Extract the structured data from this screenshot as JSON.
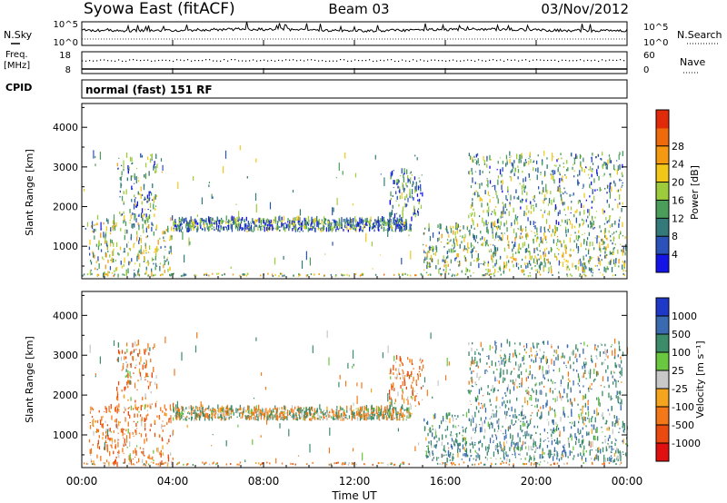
{
  "header": {
    "station": "Syowa East (fitACF)",
    "beam": "Beam 03",
    "date": "03/Nov/2012"
  },
  "noise_panel": {
    "left_label": "N.Sky",
    "right_label": "N.Search",
    "left_ticks": [
      "10^5",
      "10^0"
    ],
    "right_ticks": [
      "10^5",
      "10^0"
    ]
  },
  "freq_panel": {
    "left_label_1": "Freq.",
    "left_label_2": "[MHz]",
    "right_label": "Nave",
    "left_ticks": [
      "18",
      "8"
    ],
    "right_ticks": [
      "60",
      "0"
    ]
  },
  "cpid": {
    "label": "CPID",
    "value": "normal (fast) 151 RF"
  },
  "chart_data": [
    {
      "type": "heatmap",
      "parameter": "Power",
      "ylabel": "Slant Range [km]",
      "xlabel": "",
      "ylim": [
        180,
        4600
      ],
      "yticks": [
        1000,
        2000,
        3000,
        4000
      ],
      "xlim_hours": [
        0,
        24
      ],
      "colorbar": {
        "label": "Power [dB]",
        "ticks": [
          "4",
          "8",
          "12",
          "16",
          "20",
          "24",
          "28"
        ],
        "range": [
          0,
          32
        ],
        "colors": [
          "#1414e6",
          "#2a52b8",
          "#347a7a",
          "#4a9e5a",
          "#9ccc3c",
          "#f2c818",
          "#f59a10",
          "#ee6a0a",
          "#e02a0a"
        ]
      },
      "echo_regions": [
        {
          "t0": 0.3,
          "t1": 4.0,
          "r0": 200,
          "r1": 1700,
          "level": 0.45
        },
        {
          "t0": 1.5,
          "t1": 3.3,
          "r0": 1600,
          "r1": 3300,
          "level": 0.35
        },
        {
          "t0": 4.0,
          "t1": 14.5,
          "r0": 1350,
          "r1": 1650,
          "level": 0.3
        },
        {
          "t0": 13.5,
          "t1": 15.0,
          "r0": 1700,
          "r1": 2900,
          "level": 0.25
        },
        {
          "t0": 15.0,
          "t1": 24.0,
          "r0": 300,
          "r1": 1500,
          "level": 0.45
        },
        {
          "t0": 17.0,
          "t1": 23.8,
          "r0": 1500,
          "r1": 3300,
          "level": 0.35
        }
      ]
    },
    {
      "type": "heatmap",
      "parameter": "Velocity",
      "ylabel": "Slant Range [km]",
      "xlabel": "Time UT",
      "ylim": [
        180,
        4600
      ],
      "yticks": [
        1000,
        2000,
        3000,
        4000
      ],
      "xlim_hours": [
        0,
        24
      ],
      "xticks": [
        "00:00",
        "04:00",
        "08:00",
        "12:00",
        "16:00",
        "20:00",
        "00:00"
      ],
      "colorbar": {
        "label": "Velocity [m s⁻¹]",
        "ticks": [
          "1000",
          "500",
          "100",
          "25",
          "-25",
          "-100",
          "-500",
          "-1000"
        ],
        "colors": [
          "#1e38c8",
          "#3a6ab0",
          "#3c8c6a",
          "#6ac840",
          "#c8c8c8",
          "#f5a41e",
          "#f47818",
          "#ea4a10",
          "#e01010"
        ]
      },
      "echo_regions": [
        {
          "t0": 0.3,
          "t1": 4.0,
          "r0": 200,
          "r1": 1700,
          "v": -200
        },
        {
          "t0": 1.5,
          "t1": 3.3,
          "r0": 1600,
          "r1": 3300,
          "v": -150
        },
        {
          "t0": 4.0,
          "t1": 14.5,
          "r0": 1350,
          "r1": 1650,
          "v": 0
        },
        {
          "t0": 13.5,
          "t1": 15.0,
          "r0": 1700,
          "r1": 2900,
          "v": -200
        },
        {
          "t0": 15.0,
          "t1": 24.0,
          "r0": 300,
          "r1": 1500,
          "v": 200
        },
        {
          "t0": 17.0,
          "t1": 23.8,
          "r0": 1500,
          "r1": 3300,
          "v": 150
        }
      ]
    }
  ]
}
